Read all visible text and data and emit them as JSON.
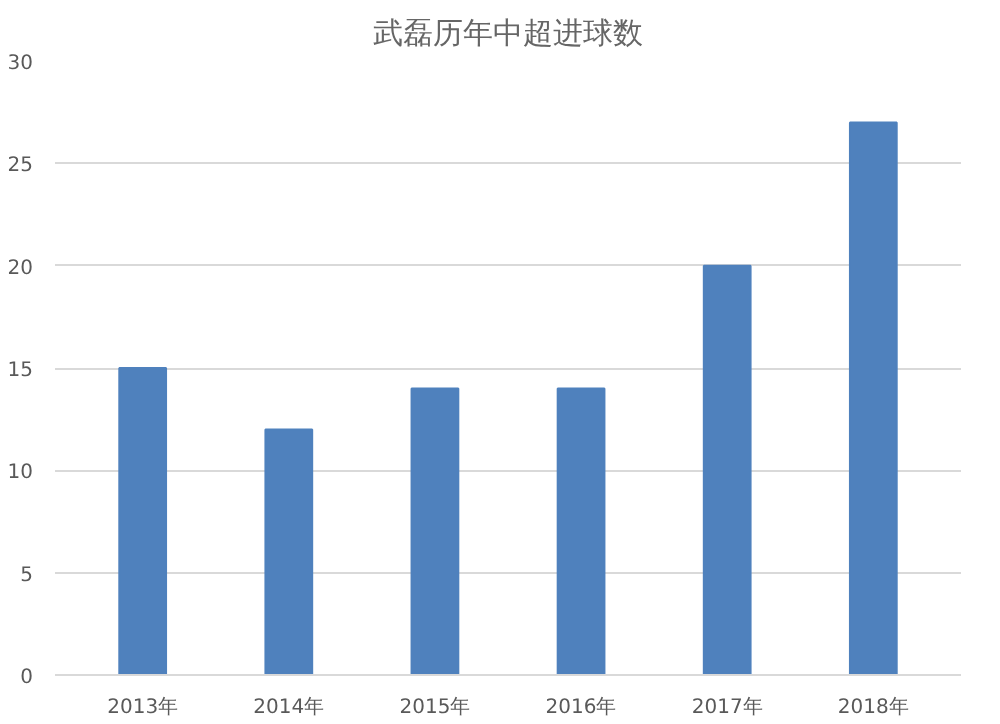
{
  "chart_data": {
    "type": "bar",
    "title": "武磊历年中超进球数",
    "categories": [
      "2013年",
      "2014年",
      "2015年",
      "2016年",
      "2017年",
      "2018年"
    ],
    "values": [
      15,
      12,
      14,
      14,
      20,
      27
    ],
    "color": "#4f81bd",
    "ylim": [
      0,
      30
    ],
    "yticks": [
      0,
      5,
      10,
      15,
      20,
      25,
      30
    ],
    "grid": "y"
  }
}
